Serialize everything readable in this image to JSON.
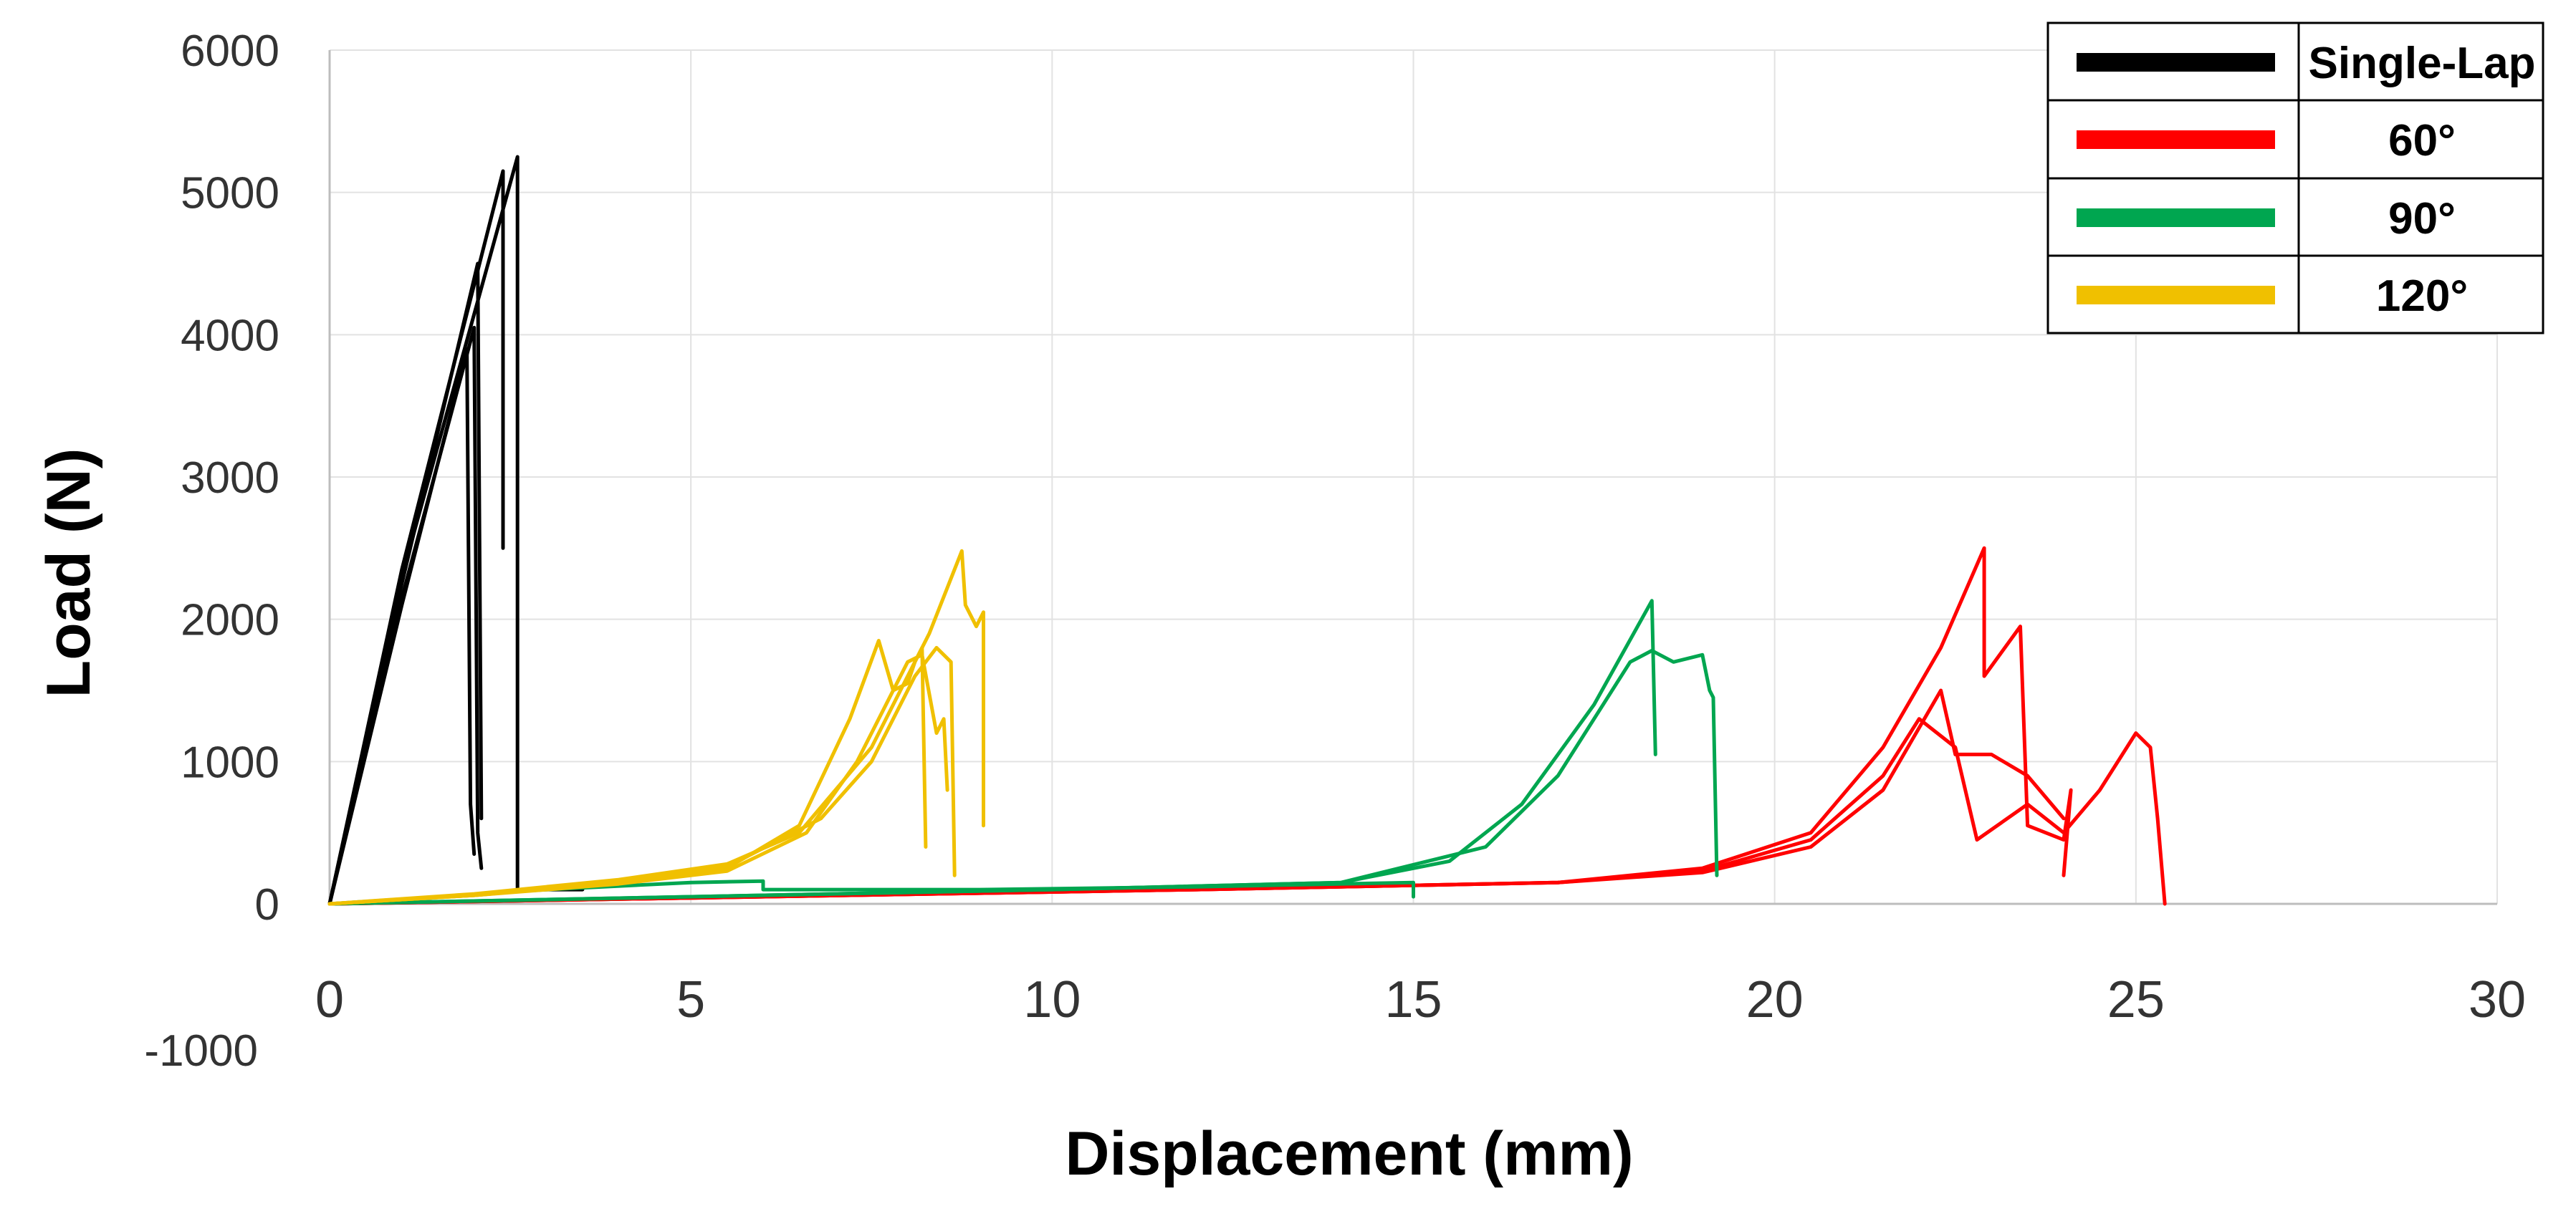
{
  "chart_data": {
    "type": "line",
    "title": "",
    "xlabel": "Displacement (mm)",
    "ylabel": "Load (N)",
    "xlim": [
      0,
      30
    ],
    "ylim": [
      -1000,
      6000
    ],
    "x_ticks": [
      0,
      5,
      10,
      15,
      20,
      25,
      30
    ],
    "y_ticks": [
      0,
      1000,
      2000,
      3000,
      4000,
      5000,
      6000
    ],
    "y_bottom_label": "-1000",
    "grid": true,
    "legend_position": "top-right",
    "series": [
      {
        "name": "Single-Lap",
        "color": "#000000",
        "curves": [
          [
            [
              0,
              0
            ],
            [
              1.0,
              2100
            ],
            [
              1.9,
              3900
            ],
            [
              1.95,
              700
            ],
            [
              2.0,
              350
            ]
          ],
          [
            [
              0,
              0
            ],
            [
              1.0,
              2150
            ],
            [
              2.0,
              4050
            ],
            [
              2.05,
              500
            ],
            [
              2.1,
              250
            ]
          ],
          [
            [
              0,
              0
            ],
            [
              1.0,
              2250
            ],
            [
              2.05,
              4500
            ],
            [
              2.1,
              600
            ]
          ],
          [
            [
              0,
              0
            ],
            [
              1.0,
              2350
            ],
            [
              2.4,
              5150
            ],
            [
              2.4,
              2500
            ]
          ],
          [
            [
              0,
              0
            ],
            [
              1.0,
              2300
            ],
            [
              2.6,
              5250
            ],
            [
              2.6,
              100
            ],
            [
              3.5,
              100
            ]
          ]
        ]
      },
      {
        "name": "60°",
        "color": "#ff0000",
        "curves": [
          [
            [
              0,
              0
            ],
            [
              12,
              100
            ],
            [
              17,
              150
            ],
            [
              19,
              220
            ],
            [
              20.5,
              400
            ],
            [
              21.5,
              800
            ],
            [
              22.3,
              1500
            ],
            [
              22.5,
              1050
            ],
            [
              23,
              1050
            ],
            [
              23.5,
              900
            ],
            [
              24,
              600
            ]
          ],
          [
            [
              0,
              0
            ],
            [
              12,
              100
            ],
            [
              17,
              150
            ],
            [
              19,
              250
            ],
            [
              20.5,
              500
            ],
            [
              21.5,
              1100
            ],
            [
              22.3,
              1800
            ],
            [
              22.9,
              2500
            ],
            [
              22.9,
              1600
            ],
            [
              23.4,
              1950
            ],
            [
              23.5,
              550
            ],
            [
              24,
              450
            ],
            [
              24.1,
              800
            ],
            [
              24,
              200
            ]
          ],
          [
            [
              0,
              0
            ],
            [
              12,
              100
            ],
            [
              17,
              150
            ],
            [
              19,
              230
            ],
            [
              20.5,
              450
            ],
            [
              21.5,
              900
            ],
            [
              22,
              1300
            ],
            [
              22.5,
              1100
            ],
            [
              22.8,
              450
            ],
            [
              23.5,
              700
            ],
            [
              24,
              500
            ],
            [
              24.5,
              800
            ],
            [
              25,
              1200
            ],
            [
              25.2,
              1100
            ],
            [
              25.3,
              600
            ],
            [
              25.4,
              0
            ]
          ]
        ]
      },
      {
        "name": "90°",
        "color": "#00a650",
        "curves": [
          [
            [
              0,
              0
            ],
            [
              10,
              100
            ],
            [
              14,
              150
            ],
            [
              15.5,
              300
            ],
            [
              16.5,
              700
            ],
            [
              17.5,
              1400
            ],
            [
              18.3,
              2130
            ],
            [
              18.35,
              1050
            ]
          ],
          [
            [
              0,
              0
            ],
            [
              10,
              100
            ],
            [
              14,
              150
            ],
            [
              16,
              400
            ],
            [
              17,
              900
            ],
            [
              18,
              1700
            ],
            [
              18.3,
              1780
            ],
            [
              18.6,
              1700
            ],
            [
              19,
              1750
            ],
            [
              19.1,
              1500
            ],
            [
              19.15,
              1450
            ],
            [
              19.2,
              200
            ]
          ],
          [
            [
              0,
              0
            ],
            [
              3,
              100
            ],
            [
              5,
              150
            ],
            [
              6,
              160
            ],
            [
              6,
              100
            ],
            [
              9,
              100
            ],
            [
              12,
              120
            ],
            [
              15,
              150
            ],
            [
              15,
              50
            ]
          ]
        ]
      },
      {
        "name": "120°",
        "color": "#f0c000",
        "curves": [
          [
            [
              0,
              0
            ],
            [
              2,
              60
            ],
            [
              4,
              150
            ],
            [
              5.5,
              250
            ],
            [
              6.5,
              550
            ],
            [
              7.2,
              1300
            ],
            [
              7.6,
              1850
            ],
            [
              7.8,
              1500
            ],
            [
              8.0,
              1550
            ],
            [
              8.1,
              1700
            ],
            [
              8.2,
              1800
            ],
            [
              8.25,
              400
            ]
          ],
          [
            [
              0,
              0
            ],
            [
              2,
              60
            ],
            [
              4,
              140
            ],
            [
              5.5,
              230
            ],
            [
              6.6,
              500
            ],
            [
              7.3,
              1000
            ],
            [
              8.0,
              1700
            ],
            [
              8.2,
              1750
            ],
            [
              8.4,
              1200
            ],
            [
              8.5,
              1300
            ],
            [
              8.55,
              800
            ]
          ],
          [
            [
              0,
              0
            ],
            [
              2,
              70
            ],
            [
              4,
              170
            ],
            [
              5.5,
              280
            ],
            [
              6.5,
              500
            ],
            [
              7.5,
              1100
            ],
            [
              8.3,
              1900
            ],
            [
              8.75,
              2480
            ],
            [
              8.8,
              2100
            ],
            [
              8.95,
              1950
            ],
            [
              9.05,
              2050
            ],
            [
              9.05,
              550
            ]
          ],
          [
            [
              0,
              0
            ],
            [
              2,
              60
            ],
            [
              4,
              150
            ],
            [
              5.5,
              260
            ],
            [
              6.8,
              600
            ],
            [
              7.5,
              1000
            ],
            [
              8.1,
              1600
            ],
            [
              8.4,
              1800
            ],
            [
              8.6,
              1700
            ],
            [
              8.65,
              200
            ]
          ]
        ]
      }
    ]
  }
}
